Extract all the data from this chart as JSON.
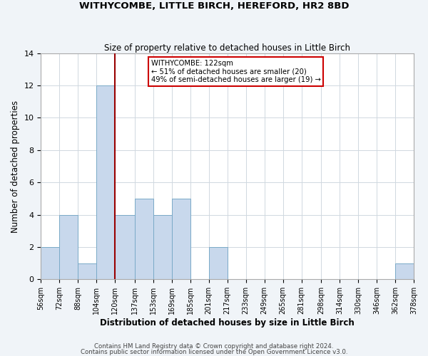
{
  "title": "WITHYCOMBE, LITTLE BIRCH, HEREFORD, HR2 8BD",
  "subtitle": "Size of property relative to detached houses in Little Birch",
  "xlabel": "Distribution of detached houses by size in Little Birch",
  "ylabel": "Number of detached properties",
  "footnote1": "Contains HM Land Registry data © Crown copyright and database right 2024.",
  "footnote2": "Contains public sector information licensed under the Open Government Licence v3.0.",
  "bin_edges": [
    56,
    72,
    88,
    104,
    120,
    137,
    153,
    169,
    185,
    201,
    217,
    233,
    249,
    265,
    281,
    298,
    314,
    330,
    346,
    362,
    378
  ],
  "bin_labels": [
    "56sqm",
    "72sqm",
    "88sqm",
    "104sqm",
    "120sqm",
    "137sqm",
    "153sqm",
    "169sqm",
    "185sqm",
    "201sqm",
    "217sqm",
    "233sqm",
    "249sqm",
    "265sqm",
    "281sqm",
    "298sqm",
    "314sqm",
    "330sqm",
    "346sqm",
    "362sqm",
    "378sqm"
  ],
  "counts": [
    2,
    4,
    1,
    12,
    4,
    5,
    4,
    5,
    0,
    2,
    0,
    0,
    0,
    0,
    0,
    0,
    0,
    0,
    0,
    1
  ],
  "bar_color": "#c8d8ec",
  "bar_edge_color": "#7aaac8",
  "vline_x": 120,
  "vline_color": "#990000",
  "annotation_title": "WITHYCOMBE: 122sqm",
  "annotation_line1": "← 51% of detached houses are smaller (20)",
  "annotation_line2": "49% of semi-detached houses are larger (19) →",
  "annotation_box_color": "#ffffff",
  "annotation_box_edge_color": "#cc0000",
  "ylim": [
    0,
    14
  ],
  "yticks": [
    0,
    2,
    4,
    6,
    8,
    10,
    12,
    14
  ],
  "background_color": "#f0f4f8",
  "plot_background_color": "#ffffff",
  "grid_color": "#d0d8e0"
}
